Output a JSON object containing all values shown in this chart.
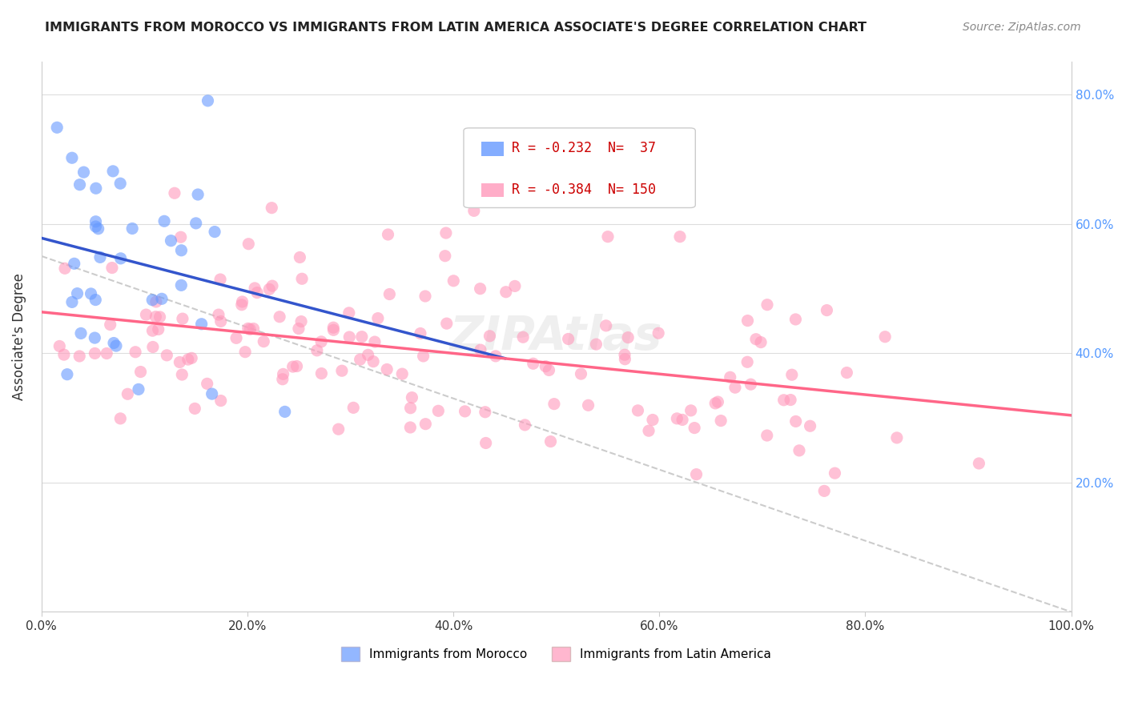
{
  "title": "IMMIGRANTS FROM MOROCCO VS IMMIGRANTS FROM LATIN AMERICA ASSOCIATE'S DEGREE CORRELATION CHART",
  "source": "Source: ZipAtlas.com",
  "ylabel": "Associate's Degree",
  "background_color": "#ffffff",
  "title_fontsize": 11.5,
  "blue_color": "#6699ff",
  "pink_color": "#ff99bb",
  "blue_line_color": "#3355cc",
  "pink_line_color": "#ff6688",
  "dashed_line_color": "#cccccc",
  "legend_r1": "R = -0.232",
  "legend_n1": "N=  37",
  "legend_r2": "R = -0.384",
  "legend_n2": "N= 150",
  "xlim": [
    0.0,
    1.0
  ],
  "ylim": [
    0.0,
    0.85
  ],
  "x_ticks": [
    0.0,
    0.2,
    0.4,
    0.6,
    0.8,
    1.0
  ],
  "x_tick_labels": [
    "0.0%",
    "20.0%",
    "40.0%",
    "60.0%",
    "80.0%",
    "100.0%"
  ],
  "y_ticks": [
    0.0,
    0.2,
    0.4,
    0.6,
    0.8
  ],
  "y_tick_labels": [
    "",
    "20.0%",
    "40.0%",
    "60.0%",
    "80.0%"
  ]
}
